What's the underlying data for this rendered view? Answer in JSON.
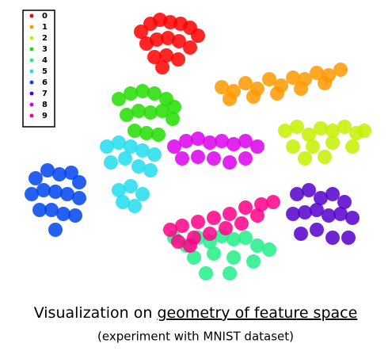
{
  "chart_data": {
    "type": "scatter",
    "caption": {
      "text": "Visualization on",
      "underlined": "geometry of feature space"
    },
    "subcaption": "(experiment with MNIST dataset)",
    "xlim": [
      0,
      495
    ],
    "ylim": [
      360,
      0
    ],
    "legend": "top-left",
    "series": [
      {
        "name": "0",
        "color": "#ff0000",
        "x": [
          178,
          190,
          202,
          215,
          228,
          240,
          250,
          185,
          198,
          212,
          226,
          240,
          195,
          210,
          225,
          205
        ],
        "values": [
          40,
          30,
          25,
          28,
          30,
          35,
          45,
          55,
          50,
          48,
          52,
          60,
          72,
          70,
          75,
          85
        ]
      },
      {
        "name": "1",
        "color": "#ff9900",
        "x": [
          280,
          295,
          310,
          325,
          340,
          355,
          370,
          385,
          400,
          415,
          430,
          290,
          320,
          350,
          380,
          410
        ],
        "values": [
          110,
          115,
          105,
          112,
          100,
          108,
          98,
          100,
          92,
          95,
          88,
          125,
          122,
          118,
          112,
          105
        ]
      },
      {
        "name": "2",
        "color": "#c4f000",
        "x": [
          360,
          375,
          390,
          405,
          420,
          435,
          450,
          460,
          370,
          395,
          420,
          445,
          385,
          410
        ],
        "values": [
          165,
          160,
          170,
          162,
          165,
          160,
          168,
          165,
          185,
          185,
          180,
          185,
          200,
          198
        ]
      },
      {
        "name": "3",
        "color": "#22dd00",
        "x": [
          150,
          165,
          180,
          195,
          210,
          220,
          160,
          175,
          190,
          205,
          218,
          170,
          185,
          200
        ],
        "values": [
          125,
          118,
          115,
          118,
          125,
          135,
          145,
          140,
          142,
          140,
          150,
          165,
          168,
          170
        ]
      },
      {
        "name": "4",
        "color": "#22ee88",
        "x": [
          220,
          235,
          250,
          265,
          280,
          295,
          310,
          325,
          340,
          245,
          270,
          295,
          320,
          260,
          290
        ],
        "values": [
          300,
          310,
          300,
          305,
          298,
          302,
          300,
          310,
          315,
          325,
          320,
          325,
          330,
          345,
          345
        ]
      },
      {
        "name": "5",
        "color": "#22ddee",
        "x": [
          135,
          150,
          165,
          180,
          195,
          140,
          158,
          175,
          190,
          150,
          165,
          180,
          155,
          170
        ],
        "values": [
          185,
          180,
          185,
          190,
          195,
          205,
          200,
          210,
          215,
          240,
          235,
          245,
          255,
          260
        ]
      },
      {
        "name": "6",
        "color": "#0044ee",
        "x": [
          45,
          60,
          75,
          90,
          100,
          40,
          55,
          70,
          85,
          100,
          50,
          65,
          80,
          95,
          70
        ],
        "values": [
          225,
          215,
          220,
          218,
          230,
          245,
          240,
          242,
          245,
          250,
          265,
          265,
          270,
          272,
          290
        ]
      },
      {
        "name": "7",
        "color": "#5500cc",
        "x": [
          375,
          390,
          405,
          420,
          435,
          370,
          385,
          400,
          415,
          430,
          445,
          380,
          400,
          420,
          440
        ],
        "values": [
          245,
          240,
          250,
          245,
          255,
          270,
          268,
          265,
          272,
          270,
          275,
          295,
          290,
          300,
          300
        ]
      },
      {
        "name": "8",
        "color": "#dd00ee",
        "x": [
          220,
          235,
          250,
          265,
          280,
          295,
          310,
          325,
          230,
          250,
          270,
          290,
          310
        ],
        "values": [
          185,
          178,
          175,
          180,
          178,
          182,
          178,
          185,
          200,
          198,
          200,
          205,
          200
        ]
      },
      {
        "name": "9",
        "color": "#ff0088",
        "x": [
          215,
          230,
          250,
          270,
          290,
          310,
          330,
          345,
          225,
          245,
          265,
          285,
          305,
          325,
          240
        ],
        "values": [
          290,
          285,
          280,
          275,
          270,
          262,
          258,
          255,
          305,
          300,
          295,
          288,
          282,
          272,
          310
        ]
      }
    ]
  }
}
